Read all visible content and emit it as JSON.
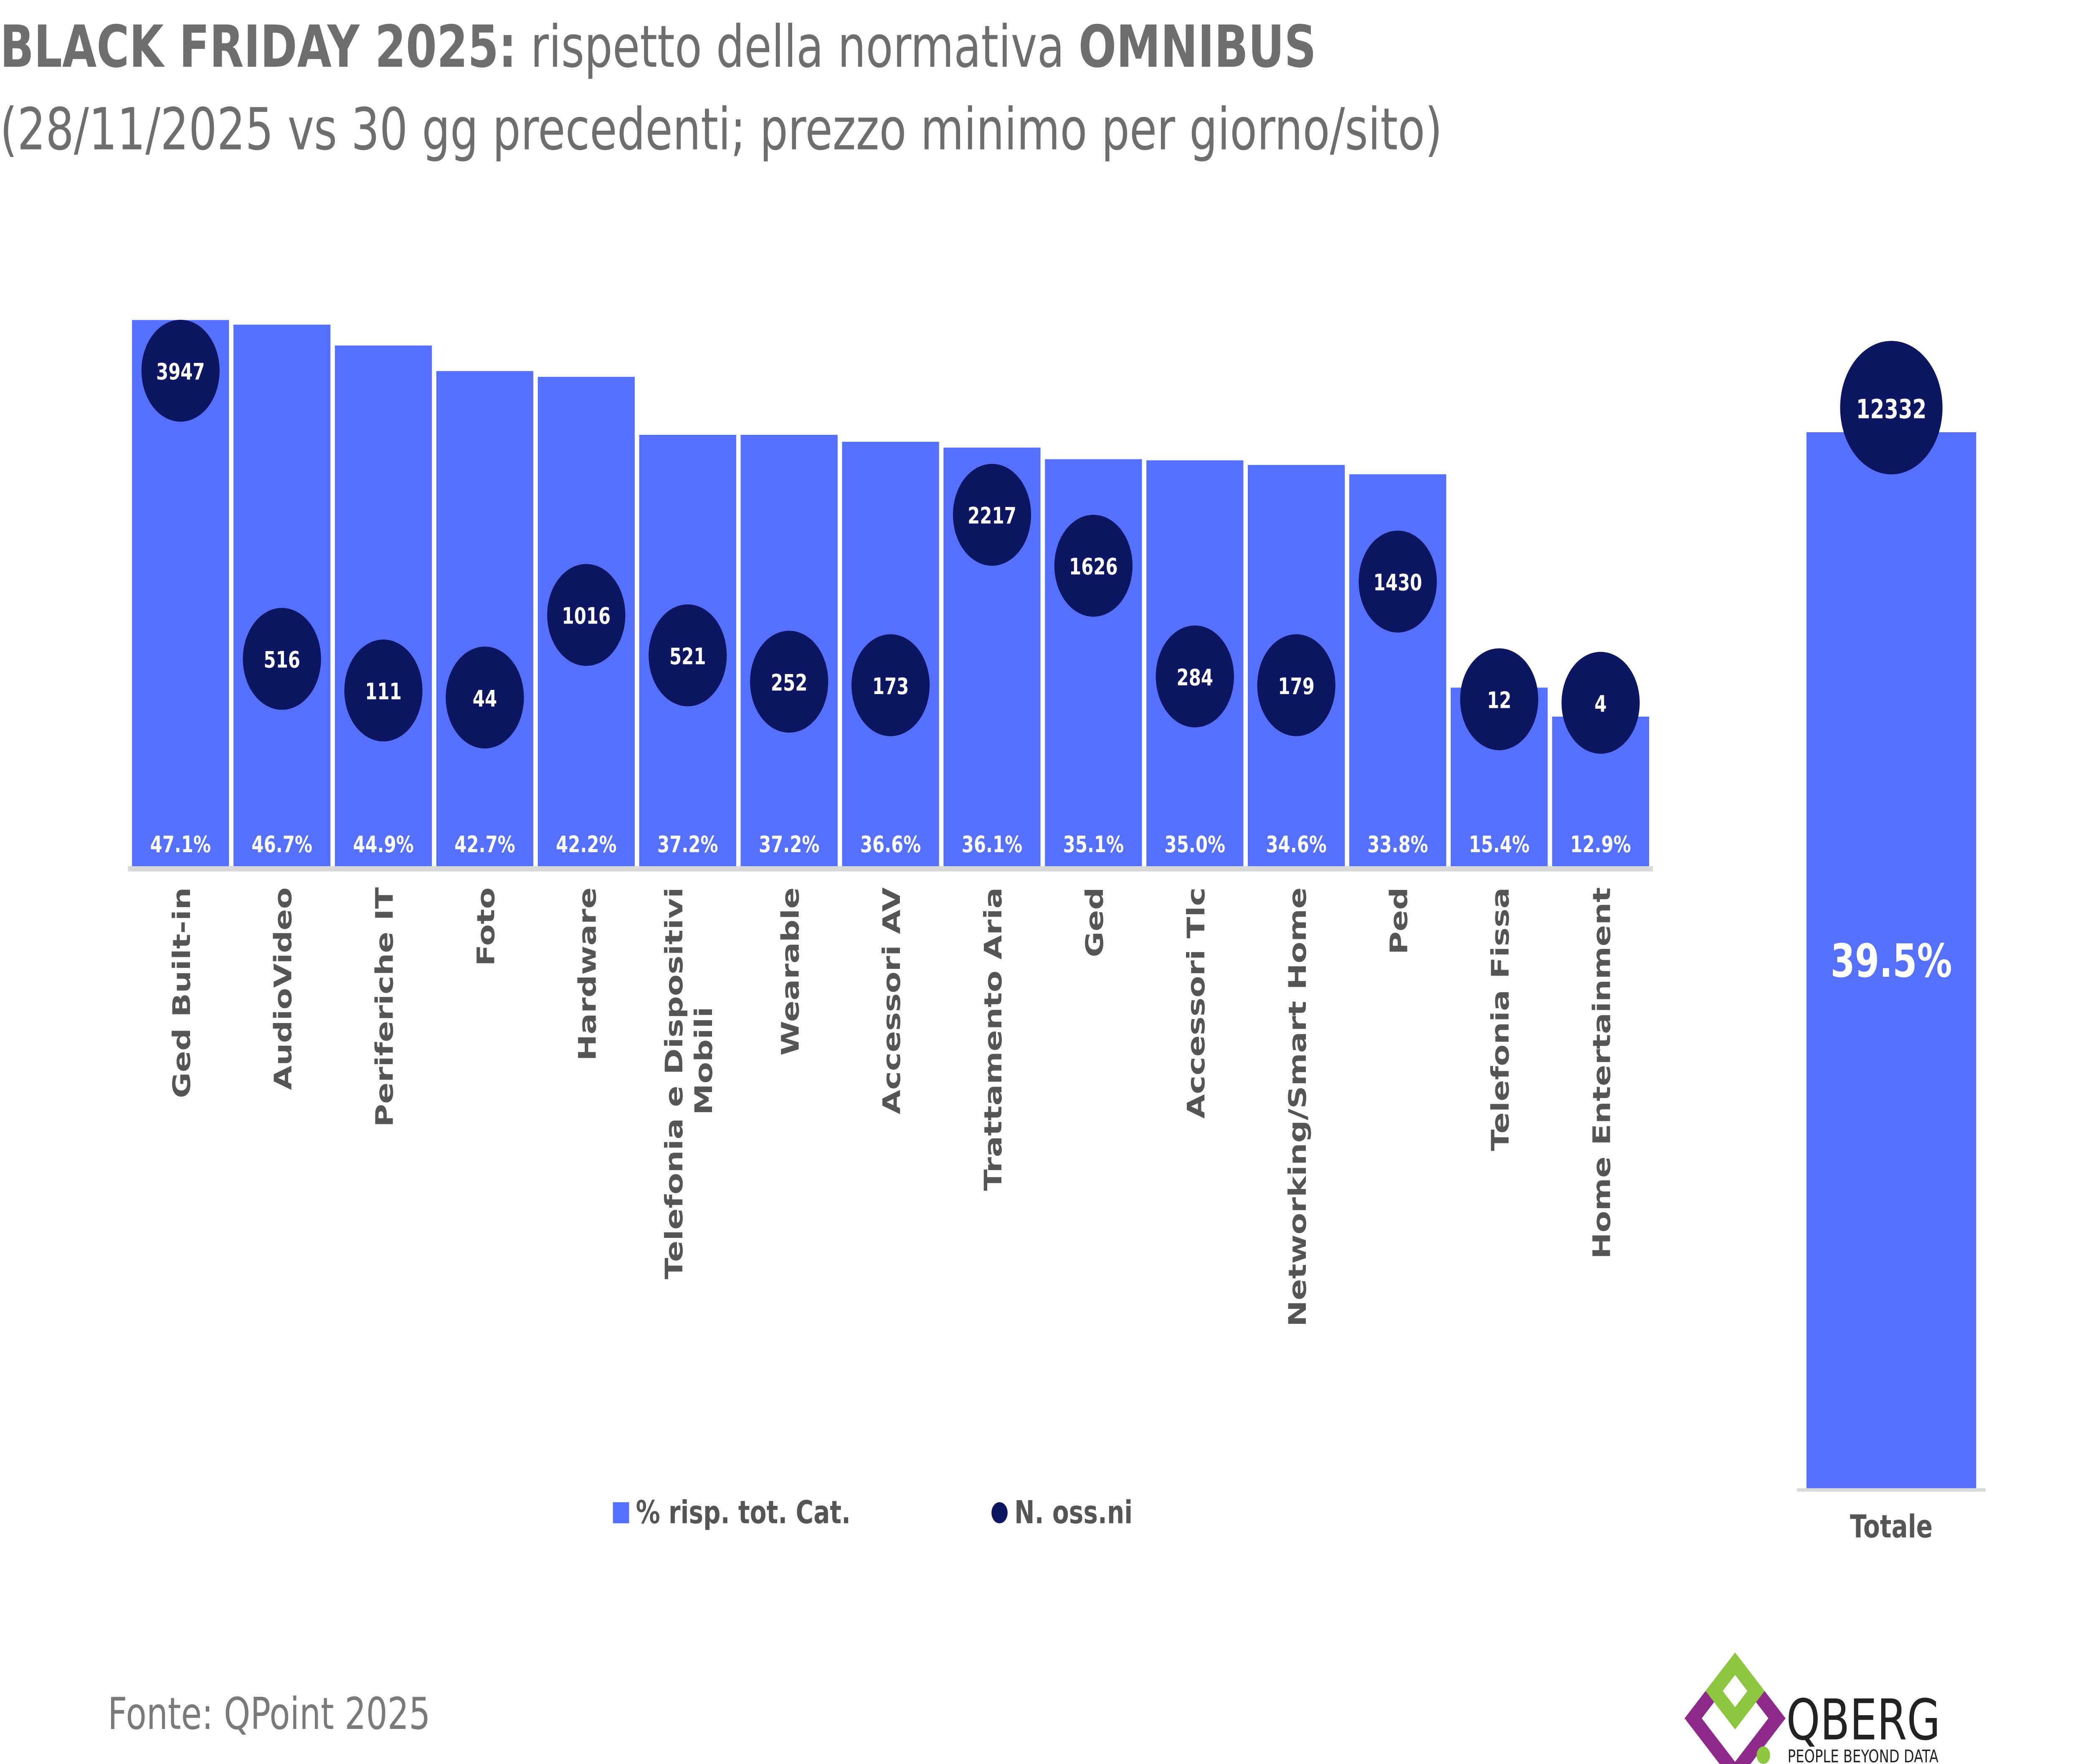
{
  "title": {
    "bold_part": "BLACK FRIDAY 2025:",
    "regular_part": " rispetto della normativa ",
    "bold_end": "OMNIBUS",
    "subtitle": "(28/11/2025 vs 30 gg precedenti; prezzo minimo per giorno/sito)"
  },
  "source": "Fonte: QPoint 2025",
  "logo": {
    "name": "QBERG",
    "tagline": "PEOPLE BEYOND DATA"
  },
  "colors": {
    "bar": "#5570FC",
    "bubble": "#0D1660",
    "text": "#6E6E6E",
    "axis": "#D9D9D9",
    "logo_purple": "#8E2A8A",
    "logo_green": "#8DC63F"
  },
  "chart_data": [
    {
      "type": "bar",
      "categories": [
        "Ged Built-in",
        "AudioVideo",
        "Periferiche IT",
        "Foto",
        "Hardware",
        "Telefonia e Dispositivi Mobili",
        "Wearable",
        "Accessori AV",
        "Trattamento Aria",
        "Ged",
        "Accessori Tlc",
        "Networking/Smart Home",
        "Ped",
        "Telefonia Fissa",
        "Home Entertainment"
      ],
      "series": [
        {
          "name": "% risp. tot. Cat.",
          "values": [
            47.1,
            46.7,
            44.9,
            42.7,
            42.2,
            37.2,
            37.2,
            36.6,
            36.1,
            35.1,
            35.0,
            34.6,
            33.8,
            15.4,
            12.9
          ],
          "labels": [
            "47.1%",
            "46.7%",
            "44.9%",
            "42.7%",
            "42.2%",
            "37.2%",
            "37.2%",
            "36.6%",
            "36.1%",
            "35.1%",
            "35.0%",
            "34.6%",
            "33.8%",
            "15.4%",
            "12.9%"
          ]
        },
        {
          "name": "N. oss.ni",
          "values": [
            3947,
            516,
            111,
            44,
            1016,
            521,
            252,
            173,
            2217,
            1626,
            284,
            179,
            1430,
            12,
            4
          ]
        }
      ],
      "legend": [
        {
          "label": "% risp. tot. Cat.",
          "marker": "square"
        },
        {
          "label": "N. oss.ni",
          "marker": "circle"
        }
      ],
      "legend_position": "bottom",
      "grid": false
    },
    {
      "type": "bar",
      "categories": [
        "Totale"
      ],
      "series": [
        {
          "name": "% risp. tot. Cat.",
          "values": [
            39.5
          ],
          "labels": [
            "39.5%"
          ]
        },
        {
          "name": "N. oss.ni",
          "values": [
            12332
          ]
        }
      ]
    }
  ]
}
